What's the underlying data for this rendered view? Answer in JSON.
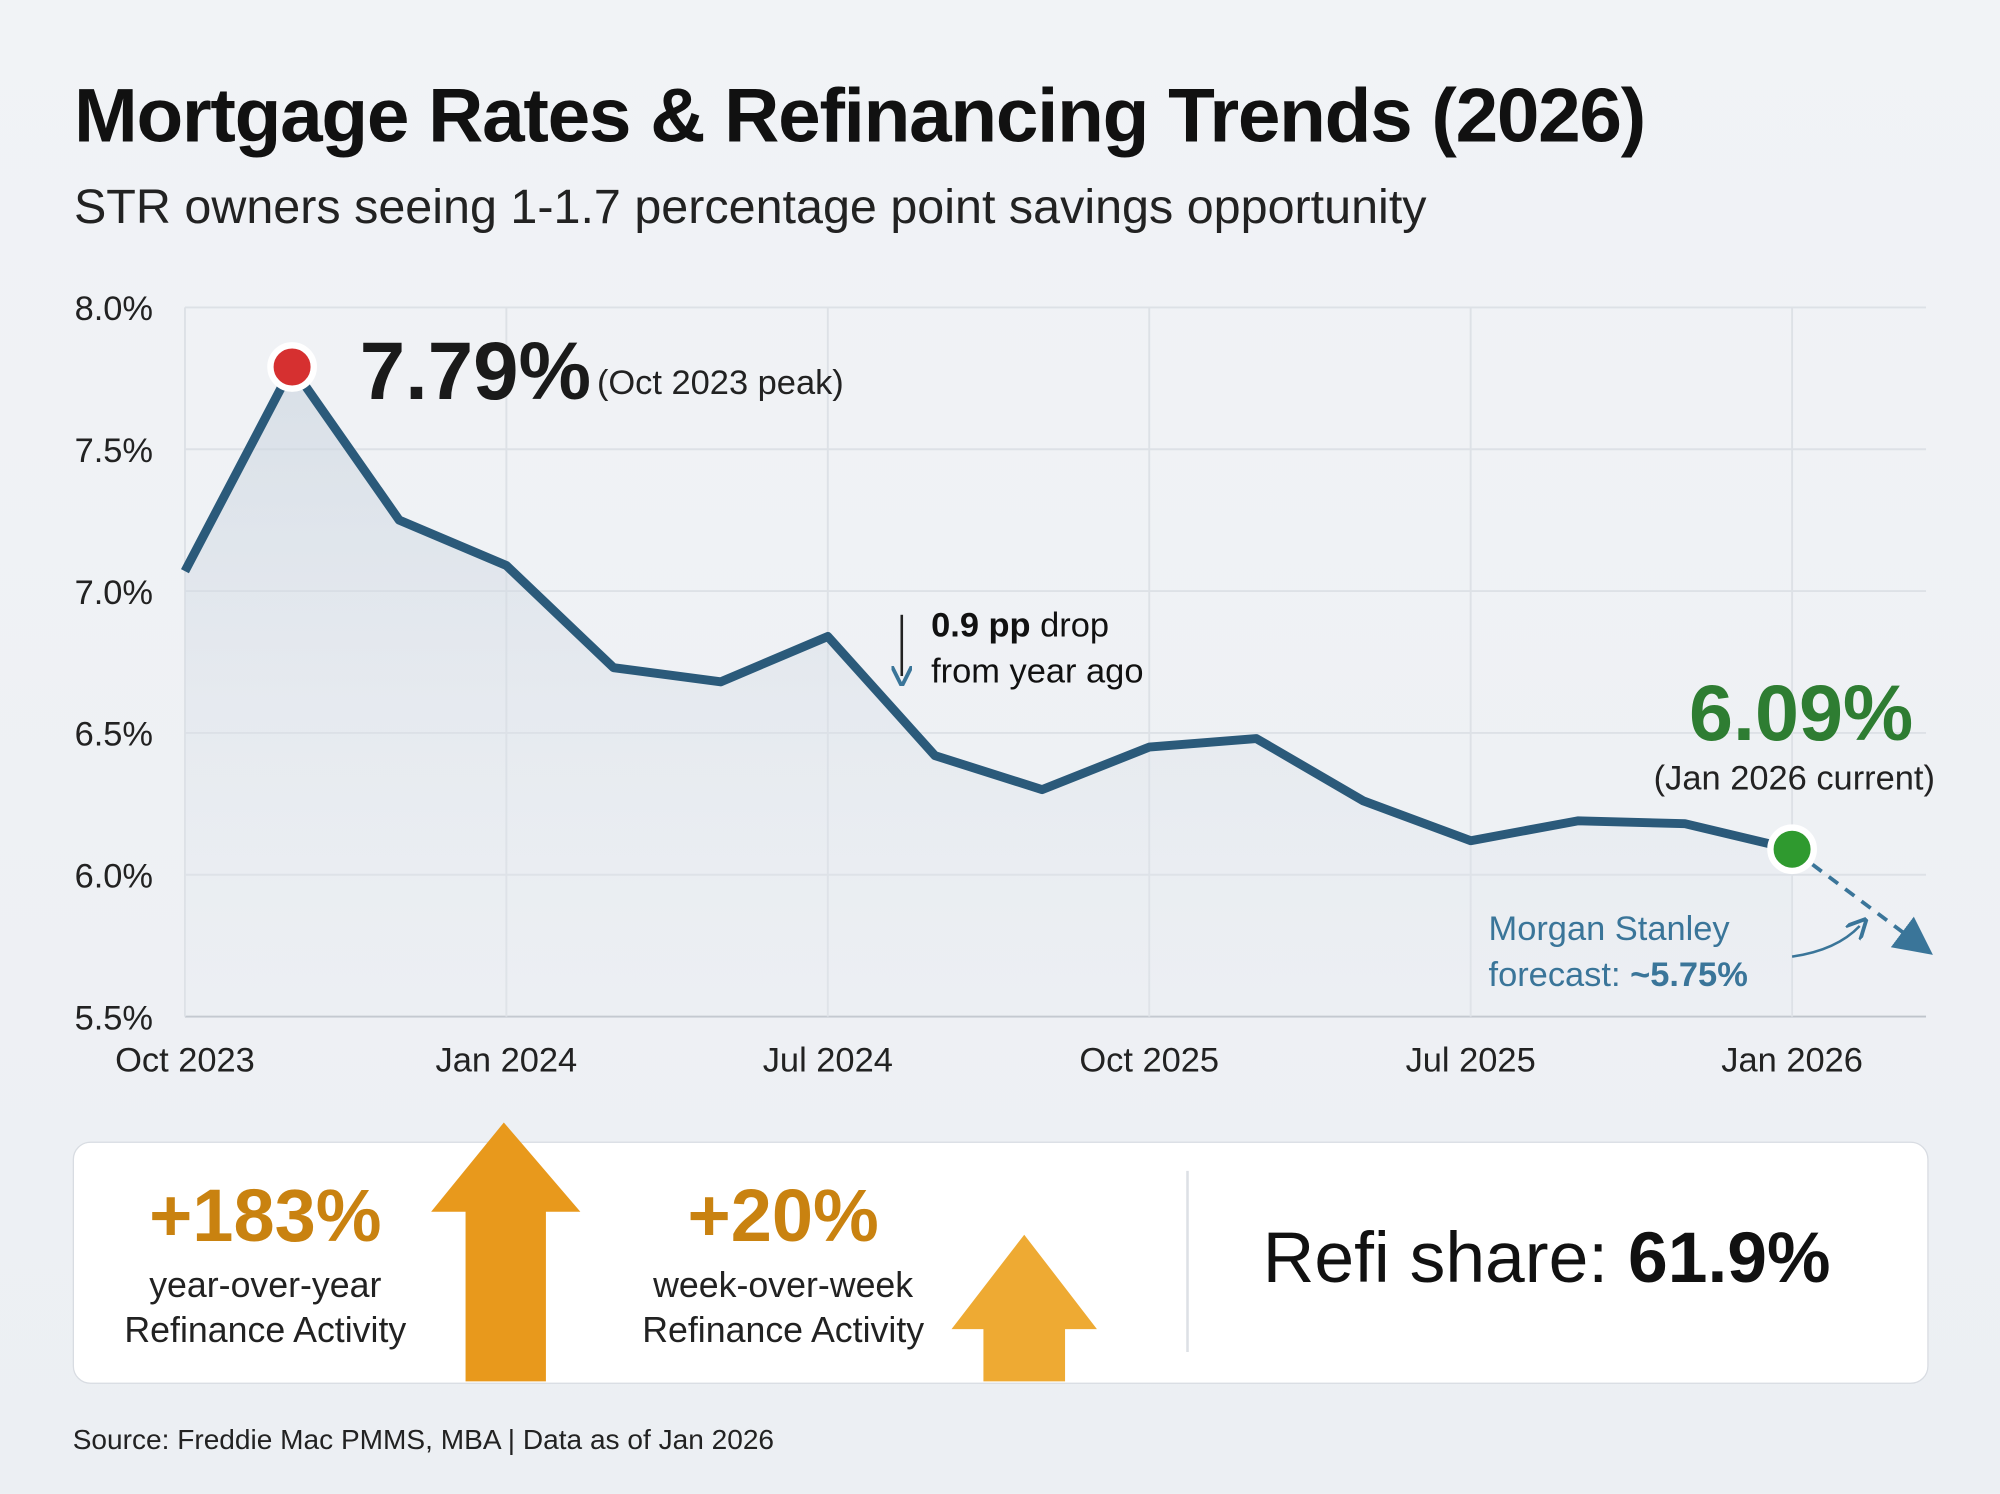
{
  "title": "Mortgage Rates & Refinancing Trends (2026)",
  "subtitle": "STR owners seeing 1-1.7 percentage point savings opportunity",
  "chart_data": {
    "type": "line",
    "x_tick_labels": [
      "Oct 2023",
      "Jan 2024",
      "Jul 2024",
      "Oct 2025",
      "Jul 2025",
      "Jan 2026"
    ],
    "x_tick_positions": [
      0,
      3,
      6,
      9,
      12,
      15
    ],
    "y_tick_labels": [
      "8.0%",
      "7.5%",
      "7.0%",
      "6.5%",
      "6.0%",
      "5.5%"
    ],
    "ylim": [
      5.5,
      8.0
    ],
    "grid": true,
    "values": [
      7.07,
      7.79,
      7.25,
      7.09,
      6.73,
      6.68,
      6.84,
      6.42,
      6.3,
      6.45,
      6.48,
      6.26,
      6.12,
      6.19,
      6.18,
      6.09
    ],
    "forecast": {
      "from_index": 15,
      "to_index": 16.2,
      "value": 5.75
    },
    "colors": {
      "line": "#2b5a7a",
      "peak": "#d63030",
      "current": "#2f9a2f",
      "forecast": "#3a7599"
    },
    "annotations": {
      "peak_value": "7.79%",
      "peak_label": "(Oct 2023 peak)",
      "drop_bold": "0.9 pp",
      "drop_rest": " drop",
      "drop_line2": "from year ago",
      "current_value": "6.09%",
      "current_label": "(Jan 2026 current)",
      "forecast_line1": "Morgan Stanley",
      "forecast_line2": "forecast: ",
      "forecast_value": "~5.75%"
    }
  },
  "stats": {
    "yoy_value": "+183%",
    "yoy_line1": "year-over-year",
    "yoy_line2": "Refinance Activity",
    "wow_value": "+20%",
    "wow_line1": "week-over-week",
    "wow_line2": "Refinance Activity",
    "share_label": "Refi share: ",
    "share_value": "61.9%",
    "accent": "#e8991c"
  },
  "source": "Source: Freddie Mac PMMS, MBA | Data as of Jan 2026"
}
